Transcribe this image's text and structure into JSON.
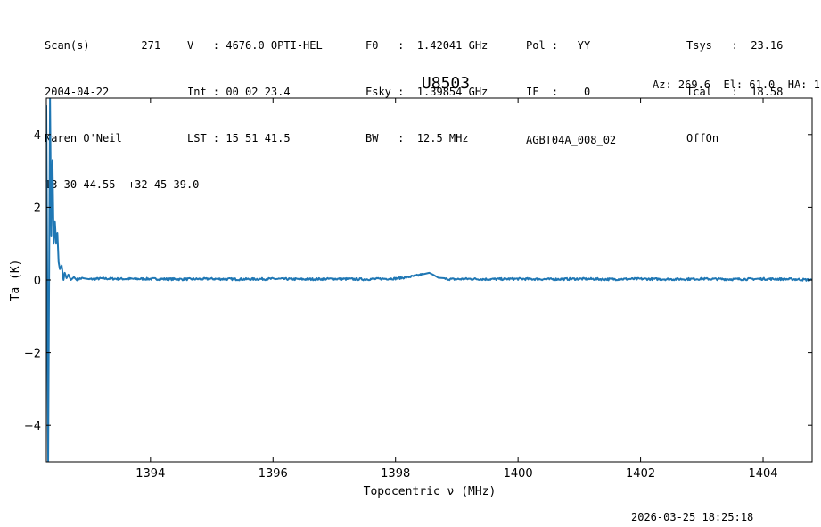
{
  "header": {
    "col1": [
      "Scan(s)        271",
      "2004-04-22",
      "Karen O'Neil",
      "13 30 44.55  +32 45 39.0"
    ],
    "col2": [
      "V   : 4676.0 OPTI-HEL",
      "Int : 00 02 23.4",
      "LST : 15 51 41.5"
    ],
    "col3": [
      "F0   :  1.42041 GHz",
      "Fsky :  1.39854 GHz",
      "BW   :  12.5 MHz"
    ],
    "col4": [
      "Pol :   YY",
      "IF  :    0",
      "AGBT04A_008_02"
    ],
    "col5": [
      "Tsys   :  23.16",
      "Tcal   :  18.58",
      "OffOn"
    ],
    "azel": "Az: 269.6  El: 61.0  HA: 1"
  },
  "footer": {
    "timestamp": "2026-03-25 18:25:18"
  },
  "chart_data": {
    "type": "line",
    "title": "U8503",
    "xlabel": "Topocentric ν (MHz)",
    "ylabel": "Ta (K)",
    "xlim": [
      1392.3,
      1404.8
    ],
    "ylim": [
      -5,
      5
    ],
    "xticks": [
      1394,
      1396,
      1398,
      1400,
      1402,
      1404
    ],
    "yticks": [
      -4,
      -2,
      0,
      2,
      4
    ],
    "xtick_labels": [
      "1394",
      "1396",
      "1398",
      "1400",
      "1402",
      "1404"
    ],
    "ytick_labels": [
      "−4",
      "−2",
      "0",
      "2",
      "4"
    ],
    "grid": false,
    "line_color": "#1f77b4",
    "series": [
      {
        "x": [
          1392.3,
          1392.33,
          1392.36,
          1392.38,
          1392.4,
          1392.42,
          1392.44,
          1392.46,
          1392.48,
          1392.5,
          1392.52,
          1392.55,
          1392.58,
          1392.6,
          1392.63,
          1392.66,
          1392.7,
          1392.75,
          1392.8,
          1392.9,
          1393.0,
          1393.2,
          1393.5,
          1394.0,
          1394.5,
          1395.0,
          1395.5,
          1396.0,
          1396.5,
          1397.0,
          1397.5,
          1398.0,
          1398.2,
          1398.35,
          1398.45,
          1398.55,
          1398.62,
          1398.7,
          1398.8,
          1398.95,
          1399.2,
          1399.5,
          1400.0,
          1400.5,
          1401.0,
          1401.5,
          1402.0,
          1402.5,
          1403.0,
          1403.5,
          1404.0,
          1404.5,
          1404.8
        ],
        "y": [
          4.8,
          -5.0,
          5.0,
          1.2,
          3.3,
          1.0,
          1.6,
          1.0,
          1.3,
          0.5,
          0.3,
          0.4,
          0.0,
          0.2,
          0.05,
          0.15,
          0.0,
          0.08,
          0.02,
          0.05,
          0.02,
          0.04,
          0.03,
          0.03,
          0.02,
          0.03,
          0.02,
          0.03,
          0.02,
          0.03,
          0.02,
          0.04,
          0.08,
          0.12,
          0.16,
          0.2,
          0.14,
          0.06,
          0.03,
          0.02,
          0.03,
          0.02,
          0.03,
          0.02,
          0.03,
          0.02,
          0.03,
          0.02,
          0.03,
          0.02,
          0.03,
          0.02,
          0.0
        ]
      }
    ]
  }
}
